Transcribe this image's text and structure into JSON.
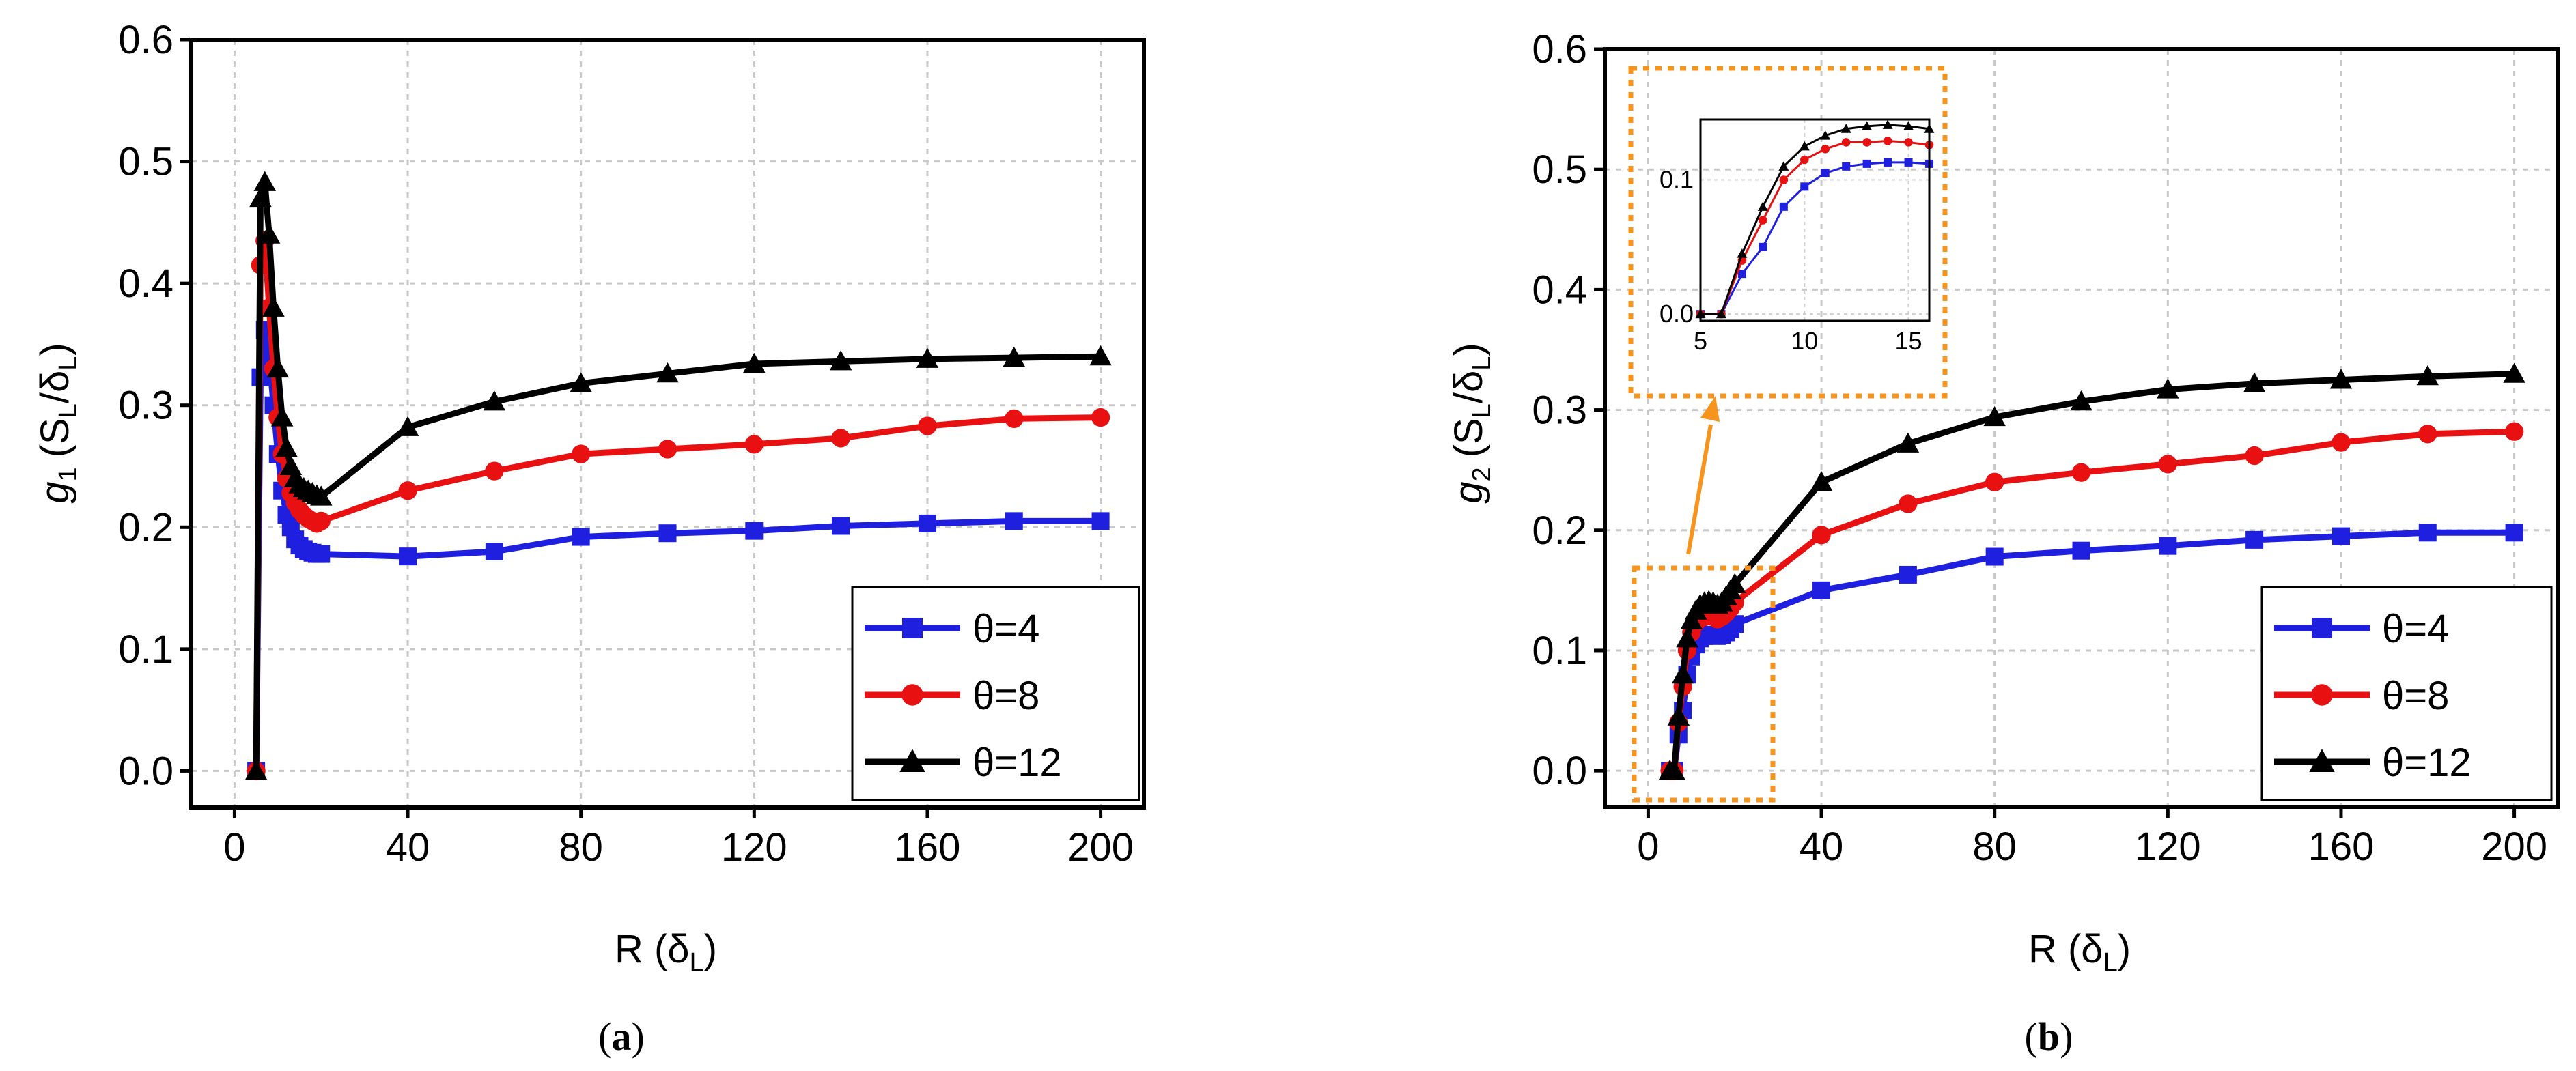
{
  "figure": {
    "panels": [
      "a",
      "b"
    ],
    "captions": [
      "(a)",
      "(b)"
    ]
  },
  "chart_data": [
    {
      "type": "line",
      "panel": "a",
      "caption_open": "(",
      "caption_letter": "a",
      "caption_close": ")",
      "ylabel_var": "g",
      "ylabel_sub": "1",
      "ylabel_units_open": "(S",
      "ylabel_units_sub1": "L",
      "ylabel_units_mid": "/δ",
      "ylabel_units_sub2": "L",
      "ylabel_units_close": ")",
      "xlabel_main": "R (δ",
      "xlabel_sub": "L",
      "xlabel_close": ")",
      "xlim": [
        -10,
        210
      ],
      "ylim": [
        -0.03,
        0.6
      ],
      "xticks": [
        0,
        40,
        80,
        120,
        160,
        200
      ],
      "xtick_labels": [
        "0",
        "40",
        "80",
        "120",
        "160",
        "200"
      ],
      "yticks": [
        0.0,
        0.1,
        0.2,
        0.3,
        0.4,
        0.5,
        0.6
      ],
      "ytick_labels": [
        "0.0",
        "0.1",
        "0.2",
        "0.3",
        "0.4",
        "0.5",
        "0.6"
      ],
      "grid": true,
      "legend_position": "bottom-right",
      "series": [
        {
          "name": "θ=4",
          "color": "#1f1fe0",
          "marker": "square",
          "x": [
            5,
            6,
            7,
            8,
            9,
            10,
            11,
            12,
            13,
            14,
            15,
            16,
            17,
            18,
            19,
            20,
            40,
            60,
            80,
            100,
            120,
            140,
            160,
            180,
            200
          ],
          "y": [
            0.0,
            0.323,
            0.362,
            0.34,
            0.3,
            0.26,
            0.23,
            0.21,
            0.2,
            0.19,
            0.185,
            0.182,
            0.18,
            0.179,
            0.178,
            0.178,
            0.176,
            0.18,
            0.192,
            0.195,
            0.197,
            0.201,
            0.203,
            0.205,
            0.205
          ]
        },
        {
          "name": "θ=8",
          "color": "#e81010",
          "marker": "circle",
          "x": [
            5,
            6,
            7,
            8,
            9,
            10,
            11,
            12,
            13,
            14,
            15,
            16,
            17,
            18,
            19,
            20,
            40,
            60,
            80,
            100,
            120,
            140,
            160,
            180,
            200
          ],
          "y": [
            0.0,
            0.415,
            0.435,
            0.38,
            0.33,
            0.29,
            0.26,
            0.24,
            0.228,
            0.22,
            0.214,
            0.21,
            0.207,
            0.205,
            0.203,
            0.205,
            0.23,
            0.246,
            0.26,
            0.264,
            0.268,
            0.273,
            0.283,
            0.289,
            0.29
          ]
        },
        {
          "name": "θ=12",
          "color": "#000000",
          "marker": "triangle",
          "x": [
            5,
            6,
            7,
            8,
            9,
            10,
            11,
            12,
            13,
            14,
            15,
            16,
            17,
            18,
            19,
            20,
            40,
            60,
            80,
            100,
            120,
            140,
            160,
            180,
            200
          ],
          "y": [
            0.0,
            0.47,
            0.483,
            0.44,
            0.38,
            0.33,
            0.29,
            0.265,
            0.25,
            0.24,
            0.235,
            0.232,
            0.23,
            0.228,
            0.226,
            0.225,
            0.282,
            0.303,
            0.318,
            0.326,
            0.334,
            0.336,
            0.338,
            0.339,
            0.34
          ]
        }
      ]
    },
    {
      "type": "line",
      "panel": "b",
      "caption_open": "(",
      "caption_letter": "b",
      "caption_close": ")",
      "ylabel_var": "g",
      "ylabel_sub": "2",
      "ylabel_units_open": "(S",
      "ylabel_units_sub1": "L",
      "ylabel_units_mid": "/δ",
      "ylabel_units_sub2": "L",
      "ylabel_units_close": ")",
      "xlabel_main": "R (δ",
      "xlabel_sub": "L",
      "xlabel_close": ")",
      "xlim": [
        -10,
        210
      ],
      "ylim": [
        -0.03,
        0.6
      ],
      "xticks": [
        0,
        40,
        80,
        120,
        160,
        200
      ],
      "xtick_labels": [
        "0",
        "40",
        "80",
        "120",
        "160",
        "200"
      ],
      "yticks": [
        0.0,
        0.1,
        0.2,
        0.3,
        0.4,
        0.5,
        0.6
      ],
      "ytick_labels": [
        "0.0",
        "0.1",
        "0.2",
        "0.3",
        "0.4",
        "0.5",
        "0.6"
      ],
      "grid": true,
      "legend_position": "bottom-right",
      "series": [
        {
          "name": "θ=4",
          "color": "#1f1fe0",
          "marker": "square",
          "x": [
            5,
            6,
            7,
            8,
            9,
            10,
            11,
            12,
            13,
            14,
            15,
            16,
            17,
            18,
            19,
            20,
            40,
            60,
            80,
            100,
            120,
            140,
            160,
            180,
            200
          ],
          "y": [
            0.0,
            0.0,
            0.03,
            0.05,
            0.08,
            0.095,
            0.105,
            0.11,
            0.112,
            0.113,
            0.113,
            0.112,
            0.113,
            0.115,
            0.118,
            0.122,
            0.15,
            0.163,
            0.178,
            0.183,
            0.187,
            0.192,
            0.195,
            0.198,
            0.198
          ]
        },
        {
          "name": "θ=8",
          "color": "#e81010",
          "marker": "circle",
          "x": [
            5,
            6,
            7,
            8,
            9,
            10,
            11,
            12,
            13,
            14,
            15,
            16,
            17,
            18,
            19,
            20,
            40,
            60,
            80,
            100,
            120,
            140,
            160,
            180,
            200
          ],
          "y": [
            0.0,
            0.0,
            0.04,
            0.07,
            0.1,
            0.115,
            0.123,
            0.128,
            0.128,
            0.129,
            0.128,
            0.126,
            0.128,
            0.131,
            0.135,
            0.14,
            0.196,
            0.222,
            0.24,
            0.248,
            0.255,
            0.262,
            0.273,
            0.28,
            0.282
          ]
        },
        {
          "name": "θ=12",
          "color": "#000000",
          "marker": "triangle",
          "x": [
            5,
            6,
            7,
            8,
            9,
            10,
            11,
            12,
            13,
            14,
            15,
            16,
            17,
            18,
            19,
            20,
            40,
            60,
            80,
            100,
            120,
            140,
            160,
            180,
            200
          ],
          "y": [
            0.0,
            0.0,
            0.045,
            0.08,
            0.11,
            0.125,
            0.133,
            0.138,
            0.14,
            0.141,
            0.14,
            0.138,
            0.14,
            0.145,
            0.15,
            0.155,
            0.24,
            0.272,
            0.294,
            0.307,
            0.317,
            0.322,
            0.325,
            0.328,
            0.33
          ]
        }
      ],
      "inset": {
        "xlim": [
          5,
          16
        ],
        "ylim": [
          -0.005,
          0.145
        ],
        "xticks": [
          5,
          10,
          15
        ],
        "xtick_labels": [
          "5",
          "10",
          "15"
        ],
        "yticks": [
          0.0,
          0.1
        ],
        "ytick_labels": [
          "0.0",
          "0.1"
        ]
      }
    }
  ]
}
